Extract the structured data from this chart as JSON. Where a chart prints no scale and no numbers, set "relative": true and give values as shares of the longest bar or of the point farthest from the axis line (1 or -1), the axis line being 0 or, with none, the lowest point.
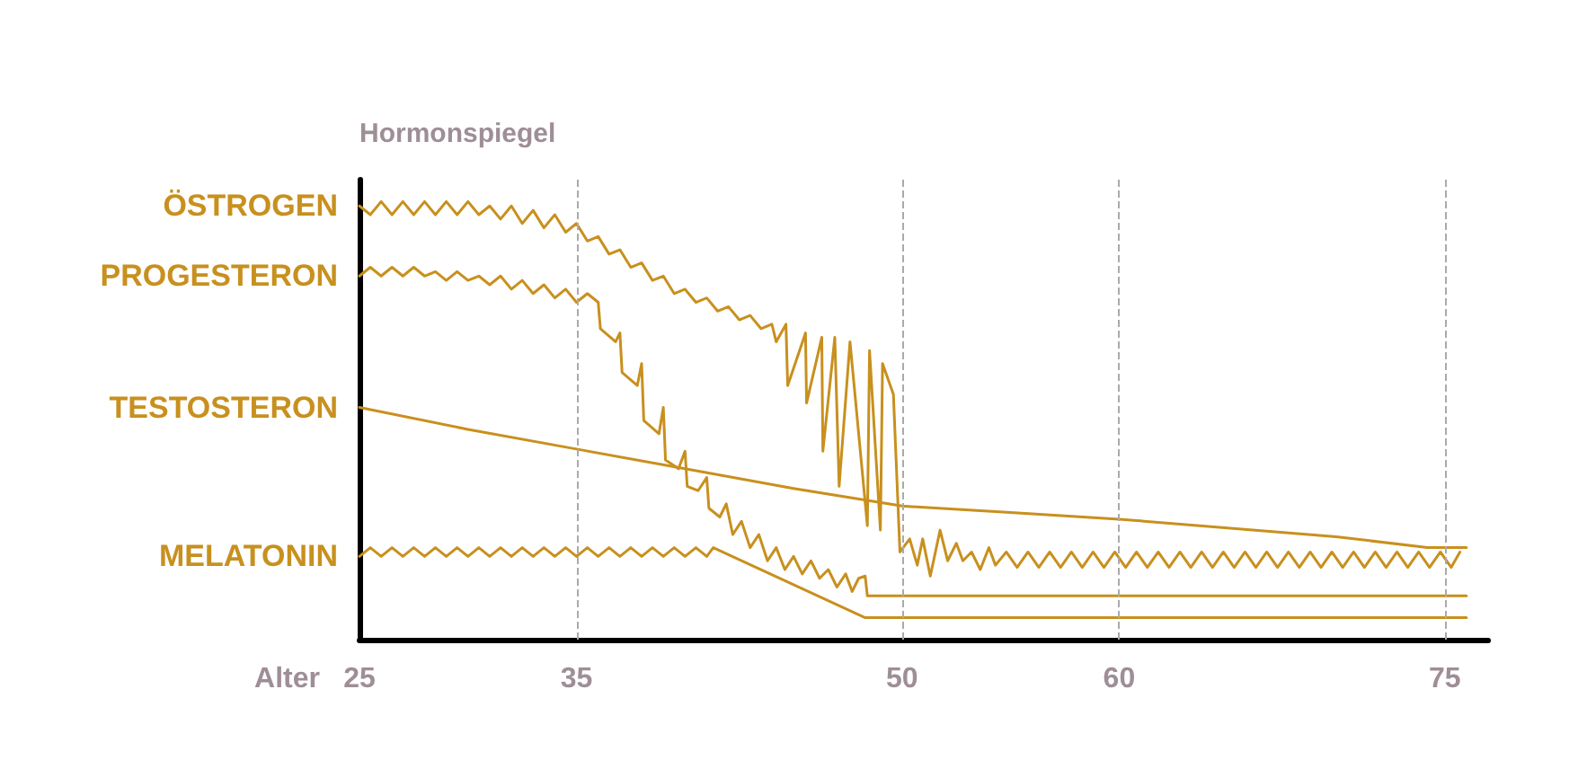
{
  "chart_data": {
    "type": "line",
    "relative": true,
    "xlabel": "Alter",
    "ylabel": "Hormonspiegel",
    "xlim": [
      25,
      77
    ],
    "xticks": [
      25,
      35,
      50,
      60,
      75
    ],
    "grid": false,
    "legend": false,
    "marker": "none",
    "line_style": "solid",
    "ref_lines": [
      {
        "axis": "x",
        "value": 35,
        "color": "#aaaaaa",
        "line_style": "dashed"
      },
      {
        "axis": "x",
        "value": 50,
        "color": "#aaaaaa",
        "line_style": "dashed"
      },
      {
        "axis": "x",
        "value": 60,
        "color": "#aaaaaa",
        "line_style": "dashed"
      },
      {
        "axis": "x",
        "value": 75,
        "color": "#aaaaaa",
        "line_style": "dashed"
      }
    ],
    "series": [
      {
        "name": "ÖSTROGEN",
        "color": "#c8901e",
        "x": [
          25,
          25.5,
          26,
          26.5,
          27,
          27.5,
          28,
          28.5,
          29,
          29.5,
          30,
          30.5,
          31,
          31.5,
          32,
          32.5,
          33,
          33.5,
          34,
          34.5,
          35,
          35.5,
          36,
          36.5,
          37,
          37.5,
          38,
          38.5,
          39,
          39.5,
          40,
          40.5,
          41,
          41.5,
          42,
          42.5,
          43,
          43.5,
          44,
          44.2,
          44.65,
          44.73,
          45.55,
          45.6,
          46.3,
          46.35,
          46.9,
          47.1,
          47.6,
          48.4,
          48.5,
          49,
          49.1,
          49.6,
          49.9,
          50.35,
          50.7,
          50.95,
          51.3,
          51.75,
          52.1,
          52.5,
          52.8,
          53.2,
          53.6,
          54,
          54.3,
          54.8,
          55.3,
          55.8,
          56.3,
          56.8,
          57.3,
          57.8,
          58.3,
          58.8,
          59.3,
          59.8,
          60.3,
          60.8,
          61.3,
          61.8,
          62.3,
          62.8,
          63.3,
          63.8,
          64.3,
          64.8,
          65.3,
          65.8,
          66.3,
          66.8,
          67.3,
          67.8,
          68.3,
          68.8,
          69.3,
          69.8,
          70.3,
          70.8,
          71.3,
          71.8,
          72.3,
          72.8,
          73.3,
          73.8,
          74.3,
          74.8,
          75.3,
          75.7
        ],
        "values": [
          0.99,
          0.97,
          1.0,
          0.97,
          1.0,
          0.97,
          1.0,
          0.97,
          1.0,
          0.97,
          1.0,
          0.97,
          0.99,
          0.96,
          0.99,
          0.95,
          0.98,
          0.94,
          0.97,
          0.93,
          0.95,
          0.91,
          0.92,
          0.88,
          0.89,
          0.85,
          0.86,
          0.82,
          0.83,
          0.79,
          0.8,
          0.77,
          0.78,
          0.75,
          0.76,
          0.73,
          0.74,
          0.71,
          0.72,
          0.68,
          0.72,
          0.58,
          0.7,
          0.54,
          0.69,
          0.43,
          0.69,
          0.35,
          0.68,
          0.26,
          0.66,
          0.25,
          0.63,
          0.56,
          0.2,
          0.23,
          0.17,
          0.23,
          0.145,
          0.25,
          0.18,
          0.22,
          0.18,
          0.2,
          0.16,
          0.21,
          0.17,
          0.2,
          0.165,
          0.2,
          0.165,
          0.2,
          0.165,
          0.2,
          0.165,
          0.2,
          0.165,
          0.2,
          0.165,
          0.2,
          0.165,
          0.2,
          0.165,
          0.2,
          0.165,
          0.2,
          0.165,
          0.2,
          0.165,
          0.2,
          0.165,
          0.2,
          0.165,
          0.2,
          0.165,
          0.2,
          0.165,
          0.2,
          0.165,
          0.2,
          0.165,
          0.2,
          0.165,
          0.2,
          0.165,
          0.2,
          0.165,
          0.2,
          0.165,
          0.2
        ]
      },
      {
        "name": "PROGESTERON",
        "color": "#c8901e",
        "x": [
          25,
          25.5,
          26,
          26.5,
          27,
          27.5,
          28,
          28.5,
          29,
          29.5,
          30,
          30.5,
          31,
          31.5,
          32,
          32.5,
          33,
          33.5,
          34,
          34.5,
          35,
          35.5,
          36,
          36.1,
          36.8,
          37,
          37.1,
          37.8,
          38,
          38.1,
          38.8,
          39,
          39.1,
          39.7,
          40,
          40.1,
          40.6,
          41,
          41.1,
          41.6,
          41.9,
          42.2,
          42.6,
          43,
          43.4,
          43.8,
          44.2,
          44.6,
          45,
          45.4,
          45.8,
          46.2,
          46.6,
          47,
          47.4,
          47.7,
          48,
          48.3,
          48.4,
          76
        ],
        "values": [
          0.83,
          0.85,
          0.83,
          0.85,
          0.83,
          0.85,
          0.83,
          0.84,
          0.82,
          0.84,
          0.82,
          0.83,
          0.81,
          0.83,
          0.8,
          0.82,
          0.79,
          0.81,
          0.78,
          0.8,
          0.77,
          0.79,
          0.77,
          0.71,
          0.68,
          0.7,
          0.61,
          0.58,
          0.63,
          0.5,
          0.47,
          0.53,
          0.41,
          0.39,
          0.43,
          0.35,
          0.34,
          0.37,
          0.3,
          0.28,
          0.31,
          0.24,
          0.27,
          0.21,
          0.24,
          0.18,
          0.21,
          0.16,
          0.19,
          0.15,
          0.18,
          0.14,
          0.16,
          0.12,
          0.15,
          0.11,
          0.14,
          0.145,
          0.1,
          0.1
        ]
      },
      {
        "name": "TESTOSTERON",
        "color": "#c8901e",
        "x": [
          25,
          30,
          35,
          40,
          45,
          50,
          55,
          60,
          65,
          70,
          74.2,
          76
        ],
        "values": [
          0.53,
          0.48,
          0.435,
          0.39,
          0.345,
          0.305,
          0.29,
          0.275,
          0.255,
          0.235,
          0.21,
          0.21
        ]
      },
      {
        "name": "MELATONIN",
        "color": "#c8901e",
        "x": [
          25,
          25.5,
          26,
          26.5,
          27,
          27.5,
          28,
          28.5,
          29,
          29.5,
          30,
          30.5,
          31,
          31.5,
          32,
          32.5,
          33,
          33.5,
          34,
          34.5,
          35,
          35.5,
          36,
          36.5,
          37,
          37.5,
          38,
          38.5,
          39,
          39.5,
          40,
          40.5,
          41,
          41.3,
          48.3,
          76
        ],
        "values": [
          0.19,
          0.21,
          0.19,
          0.21,
          0.19,
          0.21,
          0.19,
          0.21,
          0.19,
          0.21,
          0.19,
          0.21,
          0.19,
          0.21,
          0.19,
          0.21,
          0.19,
          0.21,
          0.19,
          0.21,
          0.19,
          0.21,
          0.19,
          0.21,
          0.19,
          0.21,
          0.19,
          0.21,
          0.19,
          0.21,
          0.19,
          0.21,
          0.19,
          0.21,
          0.05,
          0.05
        ]
      }
    ]
  }
}
